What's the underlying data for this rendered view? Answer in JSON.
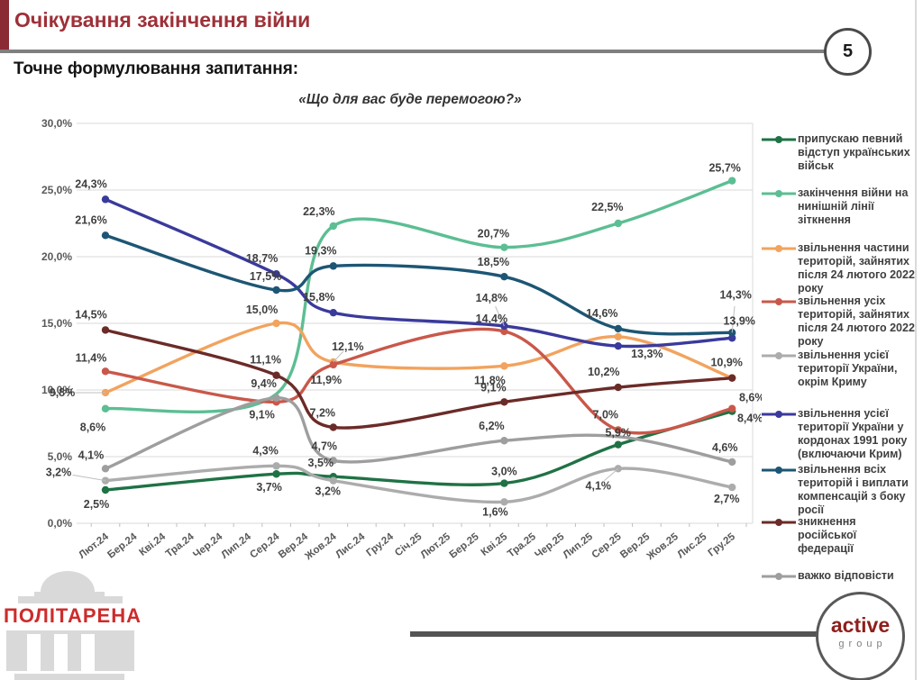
{
  "page_number": "5",
  "header": {
    "title": "Очікування закінчення війни"
  },
  "question": {
    "label": "Точне формулювання запитання:"
  },
  "chart_data": {
    "type": "line",
    "title": "«Що для вас буде перемогою?»",
    "ylim": [
      0,
      30
    ],
    "grid": true,
    "legend_position": "right",
    "ytick_labels": [
      "0,0%",
      "5,0%",
      "10,0%",
      "15,0%",
      "20,0%",
      "25,0%",
      "30,0%"
    ],
    "x_categories": [
      "Лют.24",
      "Бер.24",
      "Кві.24",
      "Тра.24",
      "Чер.24",
      "Лип.24",
      "Сер.24",
      "Вер.24",
      "Жов.24",
      "Лис.24",
      "Гру.24",
      "Січ.25",
      "Лют.25",
      "Бер.25",
      "Кві.25",
      "Тра.25",
      "Чер.25",
      "Лип.25",
      "Сер.25",
      "Вер.25",
      "Жов.25",
      "Лис.25",
      "Гру.25"
    ],
    "survey_waves": [
      "Лют.24",
      "Сер.24",
      "Жов.24",
      "Кві.25",
      "Сер.25",
      "Гру.25"
    ],
    "wave_indices": [
      0,
      6,
      8,
      14,
      18,
      22
    ],
    "series": [
      {
        "name": "припускаю певний відступ українських військ",
        "color": "#1F7245",
        "values": [
          2.5,
          3.7,
          3.5,
          3.0,
          5.9,
          8.4
        ],
        "labels": [
          "2,5%",
          "3,7%",
          "3,5%",
          "3,0%",
          "5,9%",
          "8,4%"
        ]
      },
      {
        "name": "закінчення війни на нинішній лінії зіткнення",
        "color": "#5CBE93",
        "values": [
          8.6,
          9.7,
          22.3,
          20.7,
          22.5,
          25.7
        ],
        "labels": [
          "8,6%",
          null,
          "22,3%",
          "20,7%",
          "22,5%",
          "25,7%"
        ]
      },
      {
        "name": "звільнення частини територій, зайнятих після 24 лютого 2022 року",
        "color": "#F2A35E",
        "values": [
          9.8,
          15.0,
          12.1,
          11.8,
          14.0,
          10.9
        ],
        "labels": [
          "9,8%",
          "15,0%",
          "12,1%",
          "11,8%",
          null,
          "10,9%"
        ]
      },
      {
        "name": "звільнення усіх територій, зайнятих після 24 лютого 2022 року",
        "color": "#C9584A",
        "values": [
          11.4,
          9.1,
          11.9,
          14.4,
          7.0,
          8.6
        ],
        "labels": [
          "11,4%",
          "9,1%",
          "11,9%",
          "14,4%",
          "7,0%",
          "8,6%"
        ]
      },
      {
        "name": "звільнення усієї території України, окрім Криму",
        "color": "#ACACAC",
        "values": [
          3.2,
          4.3,
          3.2,
          1.6,
          4.1,
          2.7
        ],
        "labels": [
          "3,2%",
          "4,3%",
          "3,2%",
          "1,6%",
          "4,1%",
          "2,7%"
        ]
      },
      {
        "name": "звільнення усієї території України у кордонах 1991 року (включаючи Крим)",
        "color": "#3A3A9C",
        "values": [
          24.3,
          18.7,
          15.8,
          14.8,
          13.3,
          13.9
        ],
        "labels": [
          "24,3%",
          "18,7%",
          "15,8%",
          "14,8%",
          "13,3%",
          "13,9%"
        ]
      },
      {
        "name": "звільнення всіх територій і виплати компенсацій з боку росії",
        "color": "#1D5674",
        "values": [
          21.6,
          17.5,
          19.3,
          18.5,
          14.6,
          14.3
        ],
        "labels": [
          "21,6%",
          "17,5%",
          "19,3%",
          "18,5%",
          "14,6%",
          "14,3%"
        ]
      },
      {
        "name": "зникнення російської федерації",
        "color": "#6B2B28",
        "values": [
          14.5,
          11.1,
          7.2,
          9.1,
          10.2,
          10.9
        ],
        "labels": [
          "14,5%",
          "11,1%",
          "7,2%",
          "9,1%",
          "10,2%",
          null
        ]
      },
      {
        "name": "важко відповісти",
        "color": "#9E9E9E",
        "values": [
          4.1,
          9.4,
          4.7,
          6.2,
          6.5,
          4.6
        ],
        "labels": [
          "4,1%",
          "9,4%",
          "4,7%",
          "6,2%",
          null,
          "4,6%"
        ]
      }
    ]
  },
  "footer": {
    "politarena_text": "ПОЛІТАРЕНА",
    "active_line1": "active",
    "active_line2": "group"
  }
}
